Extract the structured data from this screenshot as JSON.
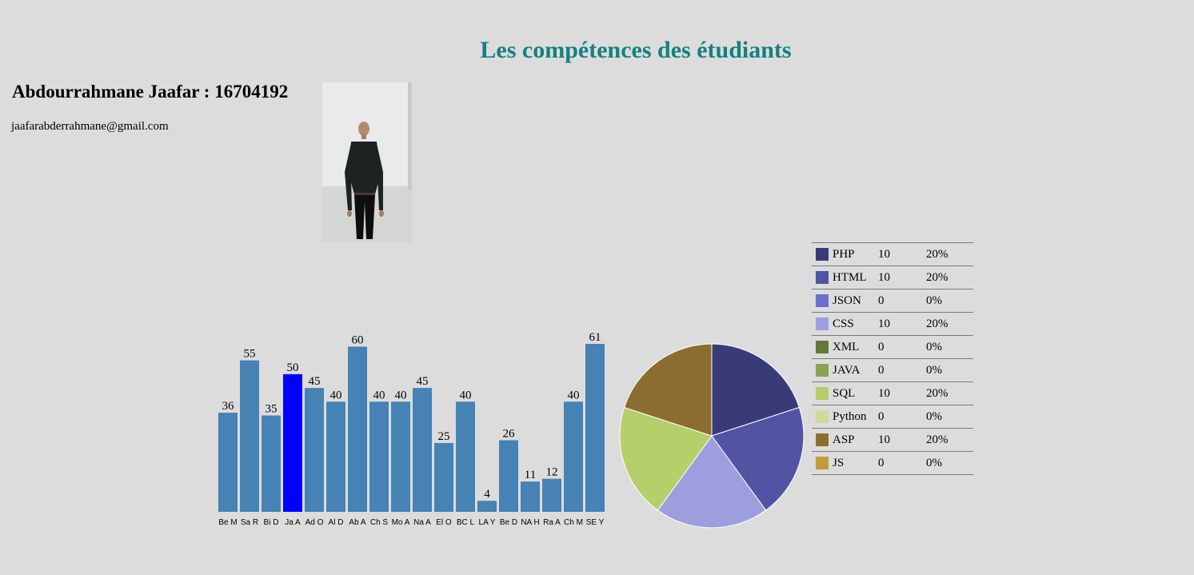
{
  "header": {
    "title": "Les compétences des étudiants",
    "student_name": "Abdourrahmane Jaafar : 16704192",
    "student_email": "jaafarabderrahmane@gmail.com"
  },
  "chart_data": [
    {
      "type": "bar",
      "categories": [
        "Be M",
        "Sa R",
        "Bi D",
        "Ja A",
        "Ad O",
        "Al D",
        "Ab A",
        "Ch S",
        "Mo A",
        "Na A",
        "El O",
        "BC L",
        "LA Y",
        "Be D",
        "NA H",
        "Ra A",
        "Ch M",
        "SE Y"
      ],
      "values": [
        36,
        55,
        35,
        50,
        45,
        40,
        60,
        40,
        40,
        45,
        25,
        40,
        4,
        26,
        11,
        12,
        40,
        61
      ],
      "highlight_index": 3,
      "colors": {
        "bar": "#4682b4",
        "highlight": "#0000ff"
      },
      "title": "",
      "xlabel": "",
      "ylabel": "",
      "ylim": [
        0,
        61
      ]
    },
    {
      "type": "pie",
      "slices": [
        {
          "label": "PHP",
          "value": 10,
          "percent": "20%",
          "color": "#393b79"
        },
        {
          "label": "HTML",
          "value": 10,
          "percent": "20%",
          "color": "#5254a3"
        },
        {
          "label": "JSON",
          "value": 0,
          "percent": "0%",
          "color": "#6b6ecf"
        },
        {
          "label": "CSS",
          "value": 10,
          "percent": "20%",
          "color": "#9c9ede"
        },
        {
          "label": "XML",
          "value": 0,
          "percent": "0%",
          "color": "#637939"
        },
        {
          "label": "JAVA",
          "value": 0,
          "percent": "0%",
          "color": "#8ca252"
        },
        {
          "label": "SQL",
          "value": 10,
          "percent": "20%",
          "color": "#b5cf6b"
        },
        {
          "label": "Python",
          "value": 0,
          "percent": "0%",
          "color": "#cedb9c"
        },
        {
          "label": "ASP",
          "value": 10,
          "percent": "20%",
          "color": "#8c6d31"
        },
        {
          "label": "JS",
          "value": 0,
          "percent": "0%",
          "color": "#bd9e39"
        }
      ],
      "legend": "right"
    }
  ]
}
